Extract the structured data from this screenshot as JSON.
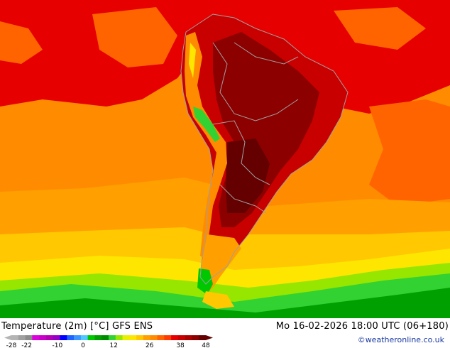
{
  "map": {
    "title": "Temperature (2m) [°C] GFS ENS",
    "valid_time": "Mo 16-02-2026 18:00 UTC (06+180)",
    "credit": "©weatheronline.co.uk",
    "region": "South America"
  },
  "colorbar": {
    "tick_labels": [
      "-28",
      "-22",
      "-10",
      "0",
      "12",
      "26",
      "38",
      "48"
    ],
    "tick_values": [
      -28,
      -22,
      -10,
      0,
      12,
      26,
      38,
      48
    ],
    "range": [
      -28,
      48
    ],
    "colors": [
      "#b4b4b4",
      "#a0a0a0",
      "#8c8c8c",
      "#dc00dc",
      "#c800c8",
      "#b400b4",
      "#9600c8",
      "#0000ff",
      "#1e64ff",
      "#3c96ff",
      "#50c8ff",
      "#00c800",
      "#00a000",
      "#008c00",
      "#32d232",
      "#96e600",
      "#e6f000",
      "#ffe600",
      "#ffc800",
      "#ffa000",
      "#ff8c00",
      "#ff6400",
      "#ff3c00",
      "#e60000",
      "#c80000",
      "#aa0000",
      "#8c0000",
      "#640000"
    ]
  },
  "palette": {
    "ocean_hot": "#ff8c00",
    "land_hot": "#c80000",
    "land_hottest": "#8c0000",
    "cold_south": "#00c800",
    "borders": "#a0a0a0"
  }
}
